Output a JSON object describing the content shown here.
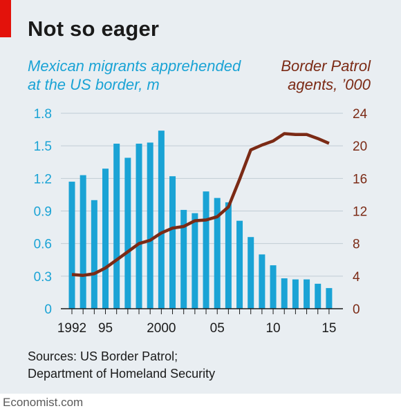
{
  "title": "Not so eager",
  "left_axis_label": [
    "Mexican migrants apprehended",
    "at the US border, m"
  ],
  "right_axis_label": [
    "Border Patrol",
    "agents, ’000"
  ],
  "source_lines": [
    "Sources: US Border Patrol;",
    "Department of Homeland Security"
  ],
  "brand": "Economist.com",
  "colors": {
    "bars": "#1aa3d5",
    "line": "#7b2a15",
    "left_axis_text": "#1aa3d5",
    "right_axis_text": "#7b2a15",
    "background": "#e9eef2",
    "accent_tag": "#e3120b"
  },
  "chart_data": {
    "type": "bar",
    "x_years": [
      1992,
      1993,
      1994,
      1995,
      1996,
      1997,
      1998,
      1999,
      2000,
      2001,
      2002,
      2003,
      2004,
      2005,
      2006,
      2007,
      2008,
      2009,
      2010,
      2011,
      2012,
      2013,
      2014,
      2015
    ],
    "x_tick_labels": [
      {
        "year": 1992,
        "label": "1992"
      },
      {
        "year": 1995,
        "label": "95"
      },
      {
        "year": 2000,
        "label": "2000"
      },
      {
        "year": 2005,
        "label": "05"
      },
      {
        "year": 2010,
        "label": "10"
      },
      {
        "year": 2015,
        "label": "15"
      }
    ],
    "series": [
      {
        "kind": "bar",
        "axis": "left",
        "values": [
          1.17,
          1.23,
          1.0,
          1.29,
          1.52,
          1.39,
          1.52,
          1.53,
          1.64,
          1.22,
          0.91,
          0.88,
          1.08,
          1.02,
          0.98,
          0.81,
          0.66,
          0.5,
          0.4,
          0.28,
          0.27,
          0.27,
          0.23,
          0.19
        ]
      },
      {
        "kind": "line",
        "axis": "right",
        "values": [
          4.2,
          4.1,
          4.3,
          5.0,
          6.0,
          7.0,
          8.0,
          8.4,
          9.3,
          9.9,
          10.1,
          10.8,
          10.9,
          11.3,
          12.5,
          15.9,
          19.5,
          20.1,
          20.6,
          21.5,
          21.4,
          21.4,
          20.9,
          20.3
        ]
      }
    ],
    "left_axis": {
      "min": 0,
      "max": 1.8,
      "ticks": [
        "0",
        "0.3",
        "0.6",
        "0.9",
        "1.2",
        "1.5",
        "1.8"
      ]
    },
    "right_axis": {
      "min": 0,
      "max": 24,
      "ticks": [
        "0",
        "4",
        "8",
        "12",
        "16",
        "20",
        "24"
      ]
    },
    "grid": true
  }
}
